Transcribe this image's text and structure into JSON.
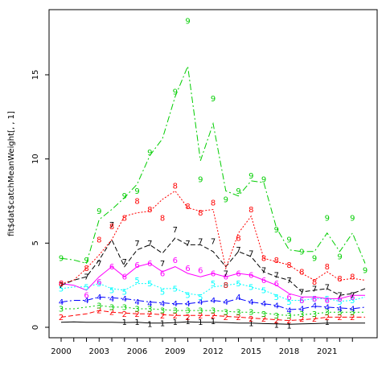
{
  "chart_data": {
    "type": "line",
    "title": "",
    "xlabel": "",
    "ylabel": "fit$dat$catchMeanWeight[, , 1]",
    "xlim": [
      2000,
      2024
    ],
    "ylim": [
      0,
      18.2
    ],
    "x_ticks": [
      2000,
      2003,
      2006,
      2009,
      2012,
      2015,
      2018,
      2021
    ],
    "y_ticks": [
      0,
      5,
      10,
      15
    ],
    "grid": false,
    "legend": "none",
    "x": [
      2000,
      2001,
      2002,
      2003,
      2004,
      2005,
      2006,
      2007,
      2008,
      2009,
      2010,
      2011,
      2012,
      2013,
      2014,
      2015,
      2016,
      2017,
      2018,
      2019,
      2020,
      2021,
      2022,
      2023,
      2024
    ],
    "series": [
      {
        "label": "1",
        "color": "#000000",
        "dash": "",
        "points": [
          [
            2005,
            0.3
          ],
          [
            2006,
            0.3
          ],
          [
            2007,
            0.2
          ],
          [
            2008,
            0.25
          ],
          [
            2009,
            0.3
          ],
          [
            2010,
            0.35
          ],
          [
            2011,
            0.3
          ],
          [
            2012,
            0.35
          ],
          [
            2015,
            0.25
          ],
          [
            2017,
            0.15
          ],
          [
            2018,
            0.1
          ],
          [
            2021,
            0.3
          ]
        ],
        "line": [
          0.3,
          0.32,
          0.3,
          0.3,
          0.3,
          0.28,
          0.3,
          0.25,
          0.25,
          0.28,
          0.32,
          0.3,
          0.3,
          0.28,
          0.25,
          0.25,
          0.22,
          0.2,
          0.18,
          0.2,
          0.22,
          0.25,
          0.25,
          0.25,
          0.25
        ]
      },
      {
        "label": "2",
        "color": "#ff0000",
        "dash": "6,3",
        "points": [
          [
            2000,
            0.6
          ],
          [
            2003,
            1.0
          ],
          [
            2004,
            0.9
          ],
          [
            2005,
            0.8
          ],
          [
            2006,
            0.8
          ],
          [
            2007,
            0.8
          ],
          [
            2008,
            0.7
          ],
          [
            2009,
            0.7
          ],
          [
            2010,
            0.6
          ],
          [
            2011,
            0.7
          ],
          [
            2012,
            0.7
          ],
          [
            2013,
            0.6
          ],
          [
            2014,
            0.6
          ],
          [
            2015,
            0.5
          ],
          [
            2016,
            0.5
          ],
          [
            2017,
            0.4
          ],
          [
            2018,
            0.4
          ],
          [
            2019,
            0.5
          ],
          [
            2020,
            0.5
          ],
          [
            2021,
            0.6
          ],
          [
            2022,
            0.6
          ],
          [
            2023,
            0.6
          ]
        ],
        "line": [
          0.6,
          0.7,
          0.8,
          1.0,
          0.9,
          0.85,
          0.8,
          0.8,
          0.75,
          0.7,
          0.7,
          0.7,
          0.7,
          0.65,
          0.6,
          0.55,
          0.5,
          0.45,
          0.4,
          0.45,
          0.5,
          0.6,
          0.6,
          0.6,
          0.6
        ]
      },
      {
        "label": "3",
        "color": "#00cd00",
        "dash": "2,3",
        "points": [
          [
            2000,
            1.1
          ],
          [
            2003,
            1.3
          ],
          [
            2004,
            1.2
          ],
          [
            2005,
            1.2
          ],
          [
            2006,
            1.1
          ],
          [
            2007,
            1.1
          ],
          [
            2008,
            1.0
          ],
          [
            2009,
            1.0
          ],
          [
            2010,
            1.0
          ],
          [
            2011,
            1.0
          ],
          [
            2012,
            1.0
          ],
          [
            2013,
            0.9
          ],
          [
            2014,
            0.9
          ],
          [
            2015,
            0.9
          ],
          [
            2016,
            0.8
          ],
          [
            2017,
            0.7
          ],
          [
            2018,
            0.7
          ],
          [
            2019,
            0.8
          ],
          [
            2020,
            0.8
          ],
          [
            2021,
            0.9
          ],
          [
            2022,
            0.9
          ],
          [
            2023,
            0.9
          ]
        ],
        "line": [
          1.1,
          1.1,
          1.2,
          1.3,
          1.2,
          1.2,
          1.1,
          1.1,
          1.05,
          1.0,
          1.0,
          1.0,
          1.0,
          0.95,
          0.9,
          0.9,
          0.85,
          0.75,
          0.7,
          0.75,
          0.8,
          0.9,
          0.9,
          0.9,
          0.9
        ]
      },
      {
        "label": "4",
        "color": "#0000ff",
        "dash": "8,3,2,3",
        "points": [
          [
            2000,
            1.5
          ],
          [
            2002,
            1.6
          ],
          [
            2003,
            1.8
          ],
          [
            2004,
            1.7
          ],
          [
            2005,
            1.7
          ],
          [
            2006,
            1.5
          ],
          [
            2007,
            1.4
          ],
          [
            2008,
            1.4
          ],
          [
            2009,
            1.4
          ],
          [
            2010,
            1.4
          ],
          [
            2011,
            1.5
          ],
          [
            2012,
            1.6
          ],
          [
            2013,
            1.5
          ],
          [
            2014,
            1.8
          ],
          [
            2015,
            1.5
          ],
          [
            2016,
            1.4
          ],
          [
            2017,
            1.3
          ],
          [
            2018,
            1.0
          ],
          [
            2019,
            1.1
          ],
          [
            2020,
            1.3
          ],
          [
            2021,
            1.2
          ],
          [
            2022,
            1.1
          ],
          [
            2023,
            1.1
          ]
        ],
        "line": [
          1.5,
          1.6,
          1.6,
          1.8,
          1.75,
          1.7,
          1.6,
          1.5,
          1.45,
          1.4,
          1.4,
          1.5,
          1.6,
          1.5,
          1.7,
          1.5,
          1.4,
          1.3,
          1.05,
          1.1,
          1.25,
          1.2,
          1.15,
          1.1,
          1.2
        ]
      },
      {
        "label": "5",
        "color": "#00ffff",
        "dash": "2,2",
        "points": [
          [
            2000,
            2.3
          ],
          [
            2002,
            2.4
          ],
          [
            2003,
            2.6
          ],
          [
            2004,
            2.2
          ],
          [
            2005,
            2.1
          ],
          [
            2006,
            2.8
          ],
          [
            2007,
            2.6
          ],
          [
            2008,
            2.1
          ],
          [
            2009,
            2.3
          ],
          [
            2010,
            1.9
          ],
          [
            2011,
            1.8
          ],
          [
            2012,
            2.6
          ],
          [
            2013,
            2.5
          ],
          [
            2014,
            2.6
          ],
          [
            2015,
            2.4
          ],
          [
            2016,
            2.2
          ],
          [
            2017,
            1.8
          ],
          [
            2018,
            1.5
          ],
          [
            2019,
            1.6
          ],
          [
            2020,
            1.7
          ],
          [
            2021,
            1.7
          ],
          [
            2022,
            1.5
          ],
          [
            2023,
            1.6
          ]
        ],
        "line": [
          2.3,
          2.4,
          2.4,
          2.6,
          2.3,
          2.2,
          2.6,
          2.6,
          2.3,
          2.3,
          2.0,
          1.9,
          2.4,
          2.5,
          2.6,
          2.4,
          2.2,
          1.9,
          1.6,
          1.6,
          1.7,
          1.7,
          1.55,
          1.6,
          1.8
        ]
      },
      {
        "label": "6",
        "color": "#ff00ff",
        "dash": "",
        "points": [
          [
            2000,
            2.6
          ],
          [
            2002,
            1.9
          ],
          [
            2003,
            2.7
          ],
          [
            2004,
            3.6
          ],
          [
            2005,
            3.0
          ],
          [
            2006,
            3.7
          ],
          [
            2007,
            3.8
          ],
          [
            2008,
            3.2
          ],
          [
            2009,
            4.0
          ],
          [
            2010,
            3.5
          ],
          [
            2011,
            3.4
          ],
          [
            2012,
            3.2
          ],
          [
            2013,
            3.0
          ],
          [
            2014,
            3.2
          ],
          [
            2015,
            3.1
          ],
          [
            2016,
            2.8
          ],
          [
            2017,
            2.6
          ],
          [
            2018,
            1.8
          ],
          [
            2019,
            1.6
          ],
          [
            2020,
            1.7
          ],
          [
            2021,
            1.6
          ],
          [
            2022,
            1.7
          ],
          [
            2023,
            1.8
          ]
        ],
        "line": [
          2.6,
          2.5,
          2.2,
          3.0,
          3.6,
          3.0,
          3.6,
          3.8,
          3.3,
          3.6,
          3.2,
          3.0,
          3.2,
          3.0,
          3.2,
          3.1,
          2.8,
          2.5,
          2.0,
          1.8,
          1.8,
          1.7,
          1.7,
          1.9,
          1.9
        ]
      },
      {
        "label": "7",
        "color": "#000000",
        "dash": "6,3",
        "points": [
          [
            2000,
            2.5
          ],
          [
            2002,
            3.0
          ],
          [
            2003,
            3.8
          ],
          [
            2004,
            6.1
          ],
          [
            2005,
            3.9
          ],
          [
            2006,
            5.0
          ],
          [
            2007,
            5.0
          ],
          [
            2008,
            3.8
          ],
          [
            2009,
            5.8
          ],
          [
            2010,
            5.0
          ],
          [
            2011,
            5.1
          ],
          [
            2012,
            5.1
          ],
          [
            2013,
            3.2
          ],
          [
            2014,
            4.6
          ],
          [
            2015,
            4.4
          ],
          [
            2016,
            3.4
          ],
          [
            2017,
            3.1
          ],
          [
            2018,
            2.8
          ],
          [
            2019,
            2.1
          ],
          [
            2020,
            2.3
          ],
          [
            2021,
            2.4
          ],
          [
            2022,
            1.9
          ],
          [
            2023,
            1.9
          ]
        ],
        "line": [
          2.5,
          2.8,
          3.0,
          4.0,
          5.2,
          3.6,
          4.6,
          4.9,
          4.4,
          5.3,
          4.9,
          4.9,
          4.5,
          3.6,
          4.5,
          4.2,
          3.3,
          3.0,
          2.8,
          2.1,
          2.2,
          2.3,
          1.9,
          2.0,
          2.3
        ]
      },
      {
        "label": "8",
        "color": "#ff0000",
        "dash": "2,2",
        "points": [
          [
            2000,
            2.6
          ],
          [
            2002,
            3.5
          ],
          [
            2003,
            5.2
          ],
          [
            2004,
            6.0
          ],
          [
            2005,
            6.5
          ],
          [
            2006,
            7.5
          ],
          [
            2007,
            7.0
          ],
          [
            2008,
            6.5
          ],
          [
            2009,
            8.4
          ],
          [
            2010,
            7.2
          ],
          [
            2011,
            6.8
          ],
          [
            2012,
            7.4
          ],
          [
            2013,
            2.5
          ],
          [
            2014,
            5.3
          ],
          [
            2015,
            7.0
          ],
          [
            2016,
            4.1
          ],
          [
            2017,
            4.0
          ],
          [
            2018,
            3.7
          ],
          [
            2019,
            3.3
          ],
          [
            2020,
            2.7
          ],
          [
            2021,
            3.6
          ],
          [
            2022,
            2.9
          ],
          [
            2023,
            3.0
          ]
        ],
        "line": [
          2.6,
          2.8,
          3.5,
          4.3,
          5.2,
          6.6,
          6.8,
          6.9,
          7.6,
          8.1,
          7.1,
          6.9,
          7.0,
          3.5,
          5.6,
          6.6,
          4.1,
          3.9,
          3.7,
          3.2,
          2.8,
          3.3,
          2.8,
          2.9,
          2.8
        ]
      },
      {
        "label": "9",
        "color": "#00cd00",
        "dash": "8,3,2,3",
        "points": [
          [
            2000,
            4.1
          ],
          [
            2002,
            4.0
          ],
          [
            2003,
            6.9
          ],
          [
            2005,
            7.8
          ],
          [
            2006,
            8.1
          ],
          [
            2007,
            10.4
          ],
          [
            2009,
            14.0
          ],
          [
            2010,
            18.2
          ],
          [
            2011,
            8.8
          ],
          [
            2012,
            13.6
          ],
          [
            2013,
            7.6
          ],
          [
            2014,
            8.1
          ],
          [
            2015,
            9.0
          ],
          [
            2016,
            8.8
          ],
          [
            2017,
            5.8
          ],
          [
            2018,
            5.2
          ],
          [
            2019,
            4.5
          ],
          [
            2020,
            4.1
          ],
          [
            2021,
            6.5
          ],
          [
            2022,
            4.2
          ],
          [
            2023,
            6.5
          ],
          [
            2024,
            3.4
          ]
        ],
        "line": [
          4.1,
          4.0,
          3.8,
          6.4,
          7.0,
          7.7,
          8.5,
          10.2,
          11.2,
          13.7,
          15.5,
          9.9,
          12.1,
          8.1,
          7.8,
          8.7,
          8.6,
          5.9,
          4.6,
          4.5,
          4.5,
          5.6,
          4.5,
          5.6,
          3.8
        ]
      }
    ]
  }
}
